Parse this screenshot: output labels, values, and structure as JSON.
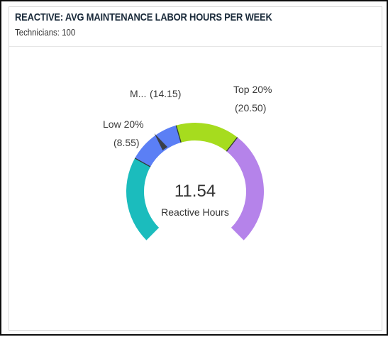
{
  "widget": {
    "title": "REACTIVE: AVG MAINTENANCE LABOR HOURS PER WEEK",
    "subtitle": "Technicians: 100"
  },
  "gauge": {
    "value_text": "11.54",
    "caption": "Reactive Hours",
    "labels": {
      "low_name": "Low 20%",
      "low_value": "(8.55)",
      "mid_name": "M...",
      "mid_value": "(14.15)",
      "top_name": "Top 20%",
      "top_value": "(20.50)"
    },
    "colors": {
      "low": "#1bbcbd",
      "low_mid": "#5b7ff5",
      "mid_top": "#a6dc1e",
      "top": "#b583ea",
      "needle": "#3a3f47"
    }
  }
}
